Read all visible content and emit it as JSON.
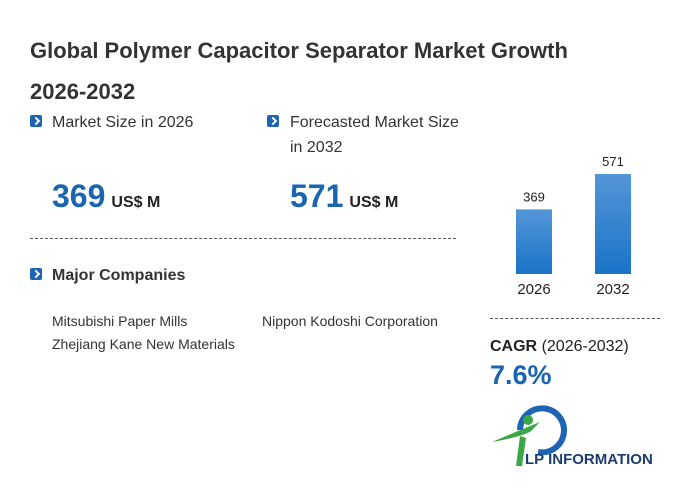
{
  "header": {
    "title": "Global Polymer Capacitor Separator Market Growth 2026-2032"
  },
  "stats": [
    {
      "label": "Market Size in 2026",
      "unit": "US$ M"
    },
    {
      "label": "Forecasted Market Size in 2032",
      "unit": "US$ M"
    }
  ],
  "companies": {
    "title": "Major Companies",
    "items": [
      "Mitsubishi Paper Mills",
      "Nippon Kodoshi Corporation",
      "Zhejiang Kane New Materials"
    ]
  },
  "chart_data": {
    "type": "bar",
    "categories": [
      "2026",
      "2032"
    ],
    "values": [
      369,
      571
    ],
    "color": "#1a73c8"
  },
  "cagr": {
    "label": "CAGR",
    "period": "(2026-2032)",
    "value": "7.6%"
  },
  "logo": {
    "text": "LP INFORMATION"
  }
}
